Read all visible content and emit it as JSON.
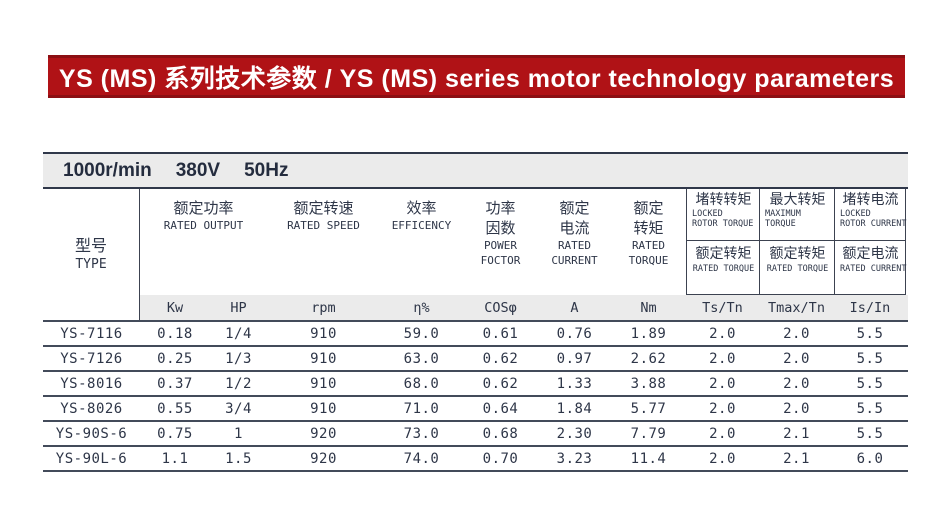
{
  "banner": {
    "title": "YS (MS) 系列技术参数 / YS (MS) series motor technology parameters",
    "bg_color": "#b01216",
    "edge_color": "#8c0f13"
  },
  "spec_bar": {
    "tokens": [
      "1000r/min",
      "380V",
      "50Hz"
    ]
  },
  "table": {
    "type_col": {
      "zh": "型号",
      "en": "TYPE"
    },
    "groups": [
      {
        "zh": [
          "额定功率"
        ],
        "en": [
          "RATED OUTPUT"
        ]
      },
      {
        "zh": [
          "额定转速"
        ],
        "en": [
          "RATED SPEED"
        ]
      },
      {
        "zh": [
          "效率"
        ],
        "en": [
          "EFFICENCY"
        ]
      },
      {
        "zh": [
          "功率",
          "因数"
        ],
        "en": [
          "POWER",
          "FOCTOR"
        ]
      },
      {
        "zh": [
          "额定",
          "电流"
        ],
        "en": [
          "RATED",
          "CURRENT"
        ]
      },
      {
        "zh": [
          "额定",
          "转矩"
        ],
        "en": [
          "RATED",
          "TORQUE"
        ]
      }
    ],
    "ratio_cols": [
      {
        "top_zh": "堵转转矩",
        "top_en": [
          "LOCKED",
          "ROTOR TORQUE"
        ],
        "bot_zh": "额定转矩",
        "bot_en": "RATED TORQUE"
      },
      {
        "top_zh": "最大转矩",
        "top_en": [
          "MAXIMUM",
          "TORQUE"
        ],
        "bot_zh": "额定转矩",
        "bot_en": "RATED TORQUE"
      },
      {
        "top_zh": "堵转电流",
        "top_en": [
          "LOCKED",
          "ROTOR CURRENT"
        ],
        "bot_zh": "额定电流",
        "bot_en": "RATED CURRENT"
      }
    ],
    "units": [
      "Kw",
      "HP",
      "rpm",
      "η%",
      "COSφ",
      "A",
      "Nm",
      "Ts/Tn",
      "Tmax/Tn",
      "Is/In"
    ],
    "rows": [
      [
        "YS-7116",
        "0.18",
        "1/4",
        "910",
        "59.0",
        "0.61",
        "0.76",
        "1.89",
        "2.0",
        "2.0",
        "5.5"
      ],
      [
        "YS-7126",
        "0.25",
        "1/3",
        "910",
        "63.0",
        "0.62",
        "0.97",
        "2.62",
        "2.0",
        "2.0",
        "5.5"
      ],
      [
        "YS-8016",
        "0.37",
        "1/2",
        "910",
        "68.0",
        "0.62",
        "1.33",
        "3.88",
        "2.0",
        "2.0",
        "5.5"
      ],
      [
        "YS-8026",
        "0.55",
        "3/4",
        "910",
        "71.0",
        "0.64",
        "1.84",
        "5.77",
        "2.0",
        "2.0",
        "5.5"
      ],
      [
        "YS-90S-6",
        "0.75",
        "1",
        "920",
        "73.0",
        "0.68",
        "2.30",
        "7.79",
        "2.0",
        "2.1",
        "5.5"
      ],
      [
        "YS-90L-6",
        "1.1",
        "1.5",
        "920",
        "74.0",
        "0.70",
        "3.23",
        "11.4",
        "2.0",
        "2.1",
        "6.0"
      ]
    ]
  }
}
